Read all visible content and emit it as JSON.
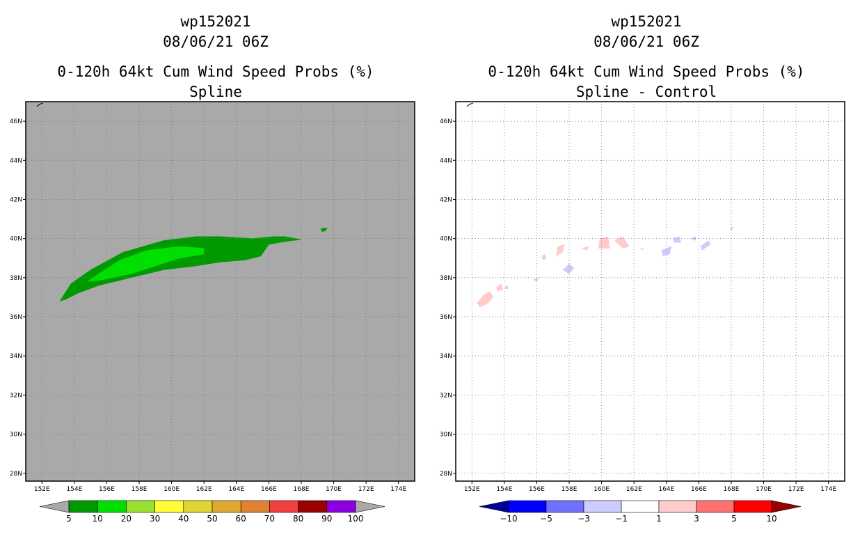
{
  "chart_data": [
    {
      "type": "heatmap",
      "panel": "left",
      "title_lines": [
        "wp152021",
        "08/06/21 06Z",
        "0-120h 64kt Cum Wind Speed Probs (%)",
        "Spline"
      ],
      "xlabel": "",
      "ylabel": "",
      "xlim": [
        151,
        175
      ],
      "ylim": [
        27.6,
        47
      ],
      "x_ticks": [
        "152E",
        "154E",
        "156E",
        "158E",
        "160E",
        "162E",
        "164E",
        "166E",
        "168E",
        "170E",
        "172E",
        "174E"
      ],
      "y_ticks": [
        "28N",
        "30N",
        "32N",
        "34N",
        "36N",
        "38N",
        "40N",
        "42N",
        "44N",
        "46N"
      ],
      "background_color": "#a9a9a9",
      "grid": "dotted",
      "regions": [
        {
          "level": "5-10",
          "color": "#009900",
          "polygon": [
            [
              153.1,
              36.8
            ],
            [
              153.8,
              37.7
            ],
            [
              155.0,
              38.4
            ],
            [
              157.0,
              39.3
            ],
            [
              159.5,
              39.9
            ],
            [
              161.5,
              40.1
            ],
            [
              163.0,
              40.1
            ],
            [
              165.0,
              40.0
            ],
            [
              166.3,
              40.1
            ],
            [
              167.0,
              40.1
            ],
            [
              168.0,
              39.95
            ],
            [
              167.0,
              39.85
            ],
            [
              166.0,
              39.7
            ],
            [
              165.5,
              39.1
            ],
            [
              164.5,
              38.9
            ],
            [
              163.0,
              38.8
            ],
            [
              161.5,
              38.6
            ],
            [
              159.5,
              38.4
            ],
            [
              157.5,
              38.0
            ],
            [
              155.5,
              37.6
            ],
            [
              154.2,
              37.2
            ],
            [
              153.5,
              36.9
            ]
          ]
        },
        {
          "level": "5-10",
          "color": "#009900",
          "polygon": [
            [
              169.2,
              40.5
            ],
            [
              169.6,
              40.55
            ],
            [
              169.5,
              40.4
            ],
            [
              169.3,
              40.35
            ]
          ]
        },
        {
          "level": "10-20",
          "color": "#00e000",
          "polygon": [
            [
              154.8,
              37.8
            ],
            [
              155.5,
              38.2
            ],
            [
              156.8,
              38.9
            ],
            [
              158.5,
              39.4
            ],
            [
              160.5,
              39.6
            ],
            [
              162.0,
              39.5
            ],
            [
              162.0,
              39.2
            ],
            [
              160.5,
              39.0
            ],
            [
              159.0,
              38.6
            ],
            [
              157.5,
              38.2
            ],
            [
              155.8,
              37.9
            ]
          ]
        }
      ],
      "colorbar": {
        "labels": [
          "5",
          "10",
          "20",
          "30",
          "40",
          "50",
          "60",
          "70",
          "80",
          "90",
          "100"
        ],
        "colors": [
          "#009900",
          "#00e000",
          "#99e033",
          "#ffff33",
          "#e0d633",
          "#e0a833",
          "#e08233",
          "#f04040",
          "#990000",
          "#8a00e0"
        ],
        "end_color": "#a9a9a9"
      }
    },
    {
      "type": "heatmap",
      "panel": "right",
      "title_lines": [
        "wp152021",
        "08/06/21 06Z",
        "0-120h 64kt Cum Wind Speed Probs (%)",
        "Spline - Control"
      ],
      "xlabel": "",
      "ylabel": "",
      "xlim": [
        151,
        175
      ],
      "ylim": [
        27.6,
        47
      ],
      "x_ticks": [
        "152E",
        "154E",
        "156E",
        "158E",
        "160E",
        "162E",
        "164E",
        "166E",
        "168E",
        "170E",
        "172E",
        "174E"
      ],
      "y_ticks": [
        "28N",
        "30N",
        "32N",
        "34N",
        "36N",
        "38N",
        "40N",
        "42N",
        "44N",
        "46N"
      ],
      "background_color": "#ffffff",
      "grid": "dotted",
      "regions": [
        {
          "level": "1-3",
          "color": "#ffcccc",
          "polygon": [
            [
              152.5,
              36.5
            ],
            [
              153.0,
              36.7
            ],
            [
              153.3,
              37.0
            ],
            [
              153.1,
              37.3
            ],
            [
              152.7,
              37.1
            ],
            [
              152.3,
              36.7
            ]
          ]
        },
        {
          "level": "1-3",
          "color": "#ffcccc",
          "polygon": [
            [
              153.5,
              37.5
            ],
            [
              153.8,
              37.7
            ],
            [
              153.9,
              37.4
            ],
            [
              153.6,
              37.3
            ]
          ]
        },
        {
          "level": "1-3",
          "color": "#ffcccc",
          "polygon": [
            [
              157.2,
              39.1
            ],
            [
              157.6,
              39.3
            ],
            [
              157.7,
              39.7
            ],
            [
              157.3,
              39.6
            ]
          ]
        },
        {
          "level": "1-3",
          "color": "#ffcccc",
          "polygon": [
            [
              156.4,
              38.9
            ],
            [
              156.6,
              39.0
            ],
            [
              156.5,
              39.2
            ],
            [
              156.3,
              39.1
            ]
          ]
        },
        {
          "level": "1-3",
          "color": "#ffcccc",
          "polygon": [
            [
              158.8,
              39.5
            ],
            [
              159.2,
              39.6
            ],
            [
              159.1,
              39.4
            ]
          ]
        },
        {
          "level": "1-3",
          "color": "#ffcccc",
          "polygon": [
            [
              159.8,
              39.5
            ],
            [
              160.5,
              39.5
            ],
            [
              160.4,
              40.1
            ],
            [
              159.9,
              40.0
            ]
          ]
        },
        {
          "level": "1-3",
          "color": "#ffcccc",
          "polygon": [
            [
              160.8,
              39.9
            ],
            [
              161.3,
              40.1
            ],
            [
              161.7,
              39.6
            ],
            [
              161.3,
              39.5
            ]
          ]
        },
        {
          "level": "1-3",
          "color": "#ffcccc",
          "polygon": [
            [
              162.4,
              39.5
            ],
            [
              162.6,
              39.5
            ],
            [
              162.5,
              39.4
            ]
          ]
        },
        {
          "level": "1-3",
          "color": "#ffcccc",
          "polygon": [
            [
              167.9,
              40.5
            ],
            [
              168.1,
              40.6
            ],
            [
              168.05,
              40.4
            ]
          ]
        },
        {
          "level": "-3--1",
          "color": "#ccccff",
          "polygon": [
            [
              157.6,
              38.4
            ],
            [
              158.0,
              38.7
            ],
            [
              158.3,
              38.5
            ],
            [
              158.0,
              38.2
            ]
          ]
        },
        {
          "level": "-3--1",
          "color": "#ccccff",
          "polygon": [
            [
              155.8,
              37.9
            ],
            [
              156.1,
              38.0
            ],
            [
              156.0,
              37.8
            ]
          ]
        },
        {
          "level": "-3--1",
          "color": "#ccccff",
          "polygon": [
            [
              154.0,
              37.5
            ],
            [
              154.2,
              37.6
            ],
            [
              154.2,
              37.4
            ]
          ]
        },
        {
          "level": "-3--1",
          "color": "#ccccff",
          "polygon": [
            [
              163.7,
              39.4
            ],
            [
              164.3,
              39.6
            ],
            [
              164.2,
              39.2
            ],
            [
              163.8,
              39.1
            ]
          ]
        },
        {
          "level": "-3--1",
          "color": "#ccccff",
          "polygon": [
            [
              164.4,
              40.0
            ],
            [
              164.8,
              40.1
            ],
            [
              164.9,
              39.8
            ],
            [
              164.5,
              39.8
            ]
          ]
        },
        {
          "level": "-3--1",
          "color": "#ccccff",
          "polygon": [
            [
              165.5,
              40.0
            ],
            [
              165.8,
              40.1
            ],
            [
              165.8,
              39.9
            ]
          ]
        },
        {
          "level": "-3--1",
          "color": "#ccccff",
          "polygon": [
            [
              166.2,
              39.4
            ],
            [
              166.7,
              39.7
            ],
            [
              166.6,
              39.9
            ],
            [
              166.1,
              39.6
            ]
          ]
        }
      ],
      "colorbar": {
        "labels": [
          "-10",
          "-5",
          "-3",
          "-1",
          "1",
          "3",
          "5",
          "10"
        ],
        "colors": [
          "#0000ff",
          "#7070ff",
          "#ccccff",
          "#ffffff",
          "#ffcccc",
          "#ff7070",
          "#ff0000"
        ],
        "end_low_color": "#000099",
        "end_high_color": "#990000"
      }
    }
  ]
}
